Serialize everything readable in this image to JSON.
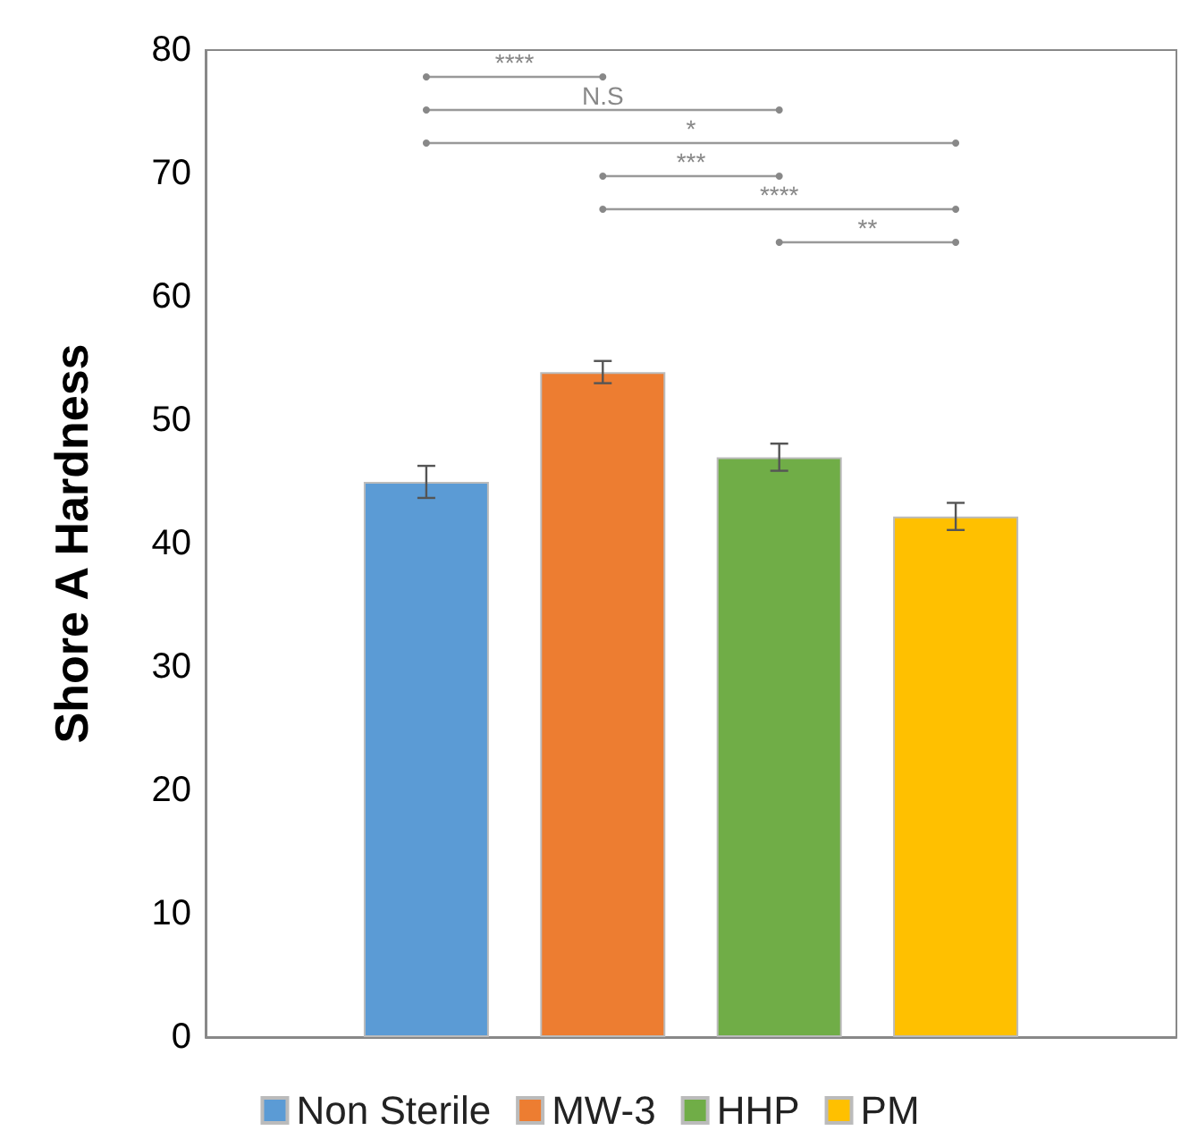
{
  "chart_data": {
    "type": "bar",
    "ylabel": "Shore A Hardness",
    "categories": [
      null
    ],
    "series": [
      {
        "name": "Non Sterile",
        "color": "#5b9bd5",
        "values": [
          45.0
        ],
        "errors": [
          1.3
        ]
      },
      {
        "name": "MW-3",
        "color": "#ed7d31",
        "values": [
          53.9
        ],
        "errors": [
          0.9
        ]
      },
      {
        "name": "HHP",
        "color": "#70ad47",
        "values": [
          47.0
        ],
        "errors": [
          1.1
        ]
      },
      {
        "name": "PM",
        "color": "#ffc000",
        "values": [
          42.2
        ],
        "errors": [
          1.1
        ]
      }
    ],
    "ylim": [
      0,
      80
    ],
    "yticks": [
      0,
      10,
      20,
      30,
      40,
      50,
      60,
      70,
      80
    ],
    "grid": false,
    "legend": "bottom",
    "annotations": [
      "****",
      "N.S",
      "*",
      "***",
      "****",
      "**"
    ]
  }
}
